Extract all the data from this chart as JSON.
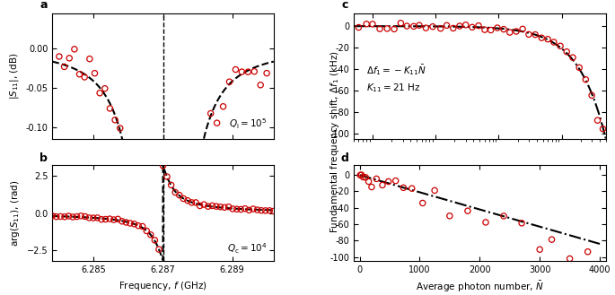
{
  "panel_a": {
    "label": "a",
    "ylabel": "$|S_{11}|$, (dB)",
    "xlim": [
      6.2838,
      6.2902
    ],
    "ylim": [
      -0.115,
      0.045
    ],
    "yticks": [
      0.0,
      -0.05,
      -0.1
    ],
    "xticks": [
      6.285,
      6.287,
      6.289
    ],
    "annotation": "$Q_\\mathrm{i} = 10^5$",
    "resonance": 6.287,
    "Qi": 100000,
    "Qc": 10000
  },
  "panel_b": {
    "label": "b",
    "xlabel": "Frequency, $f$ (GHz)",
    "ylabel": "arg$(S_{11})$, (rad)",
    "xlim": [
      6.2838,
      6.2902
    ],
    "ylim": [
      -3.2,
      3.2
    ],
    "yticks": [
      2.5,
      0.0,
      -2.5
    ],
    "xticks": [
      6.285,
      6.287,
      6.289
    ],
    "annotation": "$Q_\\mathrm{c} = 10^4$",
    "resonance": 6.287,
    "Qi": 100000,
    "Qc": 10000
  },
  "panel_c": {
    "label": "c",
    "xlim_log": [
      0.5,
      5000
    ],
    "ylim": [
      -105,
      12
    ],
    "yticks": [
      0,
      -20,
      -40,
      -60,
      -80,
      -100
    ],
    "annotation1": "$\\Delta f_1 = -K_{11}\\bar{N}$",
    "annotation2": "$K_{11} = 21$ Hz"
  },
  "panel_d": {
    "label": "d",
    "xlabel": "Average photon number, $\\bar{N}$",
    "xlim": [
      -100,
      4100
    ],
    "ylim": [
      -105,
      12
    ],
    "yticks": [
      0,
      -20,
      -40,
      -60,
      -80,
      -100
    ],
    "xticks": [
      0,
      1000,
      2000,
      3000,
      4000
    ]
  },
  "shared_ylabel": "Fundamental frequency shift, $\\Delta f_1$ (kHz)",
  "scatter_color": "#cc0000",
  "line_color": "#000000",
  "face_color": "#ffffff"
}
